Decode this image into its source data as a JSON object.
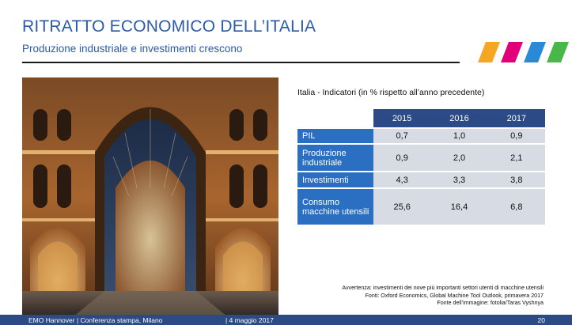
{
  "title": "RITRATTO ECONOMICO DELL’ITALIA",
  "subtitle": "Produzione industriale e investimenti crescono",
  "logo": {
    "stripe_colors": [
      "#f5a623",
      "#e2007a",
      "#2a8ad8",
      "#49b74a"
    ]
  },
  "photo": {
    "description_icon": "galleria-arcade-photo"
  },
  "table": {
    "caption": "Italia - Indicatori (in % rispetto all’anno precedente)",
    "columns": [
      "2015",
      "2016",
      "2017"
    ],
    "rows": [
      {
        "label": "PIL",
        "values": [
          "0,7",
          "1,0",
          "0,9"
        ]
      },
      {
        "label": "Produzione industriale",
        "values": [
          "0,9",
          "2,0",
          "2,1"
        ]
      },
      {
        "label": "Investimenti",
        "values": [
          "4,3",
          "3,3",
          "3,8"
        ]
      },
      {
        "label": "Consumo macchine utensili",
        "values": [
          "25,6",
          "16,4",
          "6,8"
        ]
      }
    ]
  },
  "notes": {
    "line1": "Avvertenza: investimenti dei nove più importanti settori utenti di macchine utensili",
    "line2": "Fonti: Oxford Economics, Global Machine Tool Outlook, primavera 2017",
    "line3": "Fonte dell’immagine: fotolia/Taras Vyshnya"
  },
  "footer": {
    "event": "EMO Hannover | Conferenza stampa, Milano",
    "date": "| 4 maggio 2017",
    "page": "20"
  },
  "colors": {
    "accent": "#2b5aa8",
    "header": "#2b4a86",
    "label_cell": "#2b6fc3",
    "value_cell": "#d6dbe4"
  }
}
